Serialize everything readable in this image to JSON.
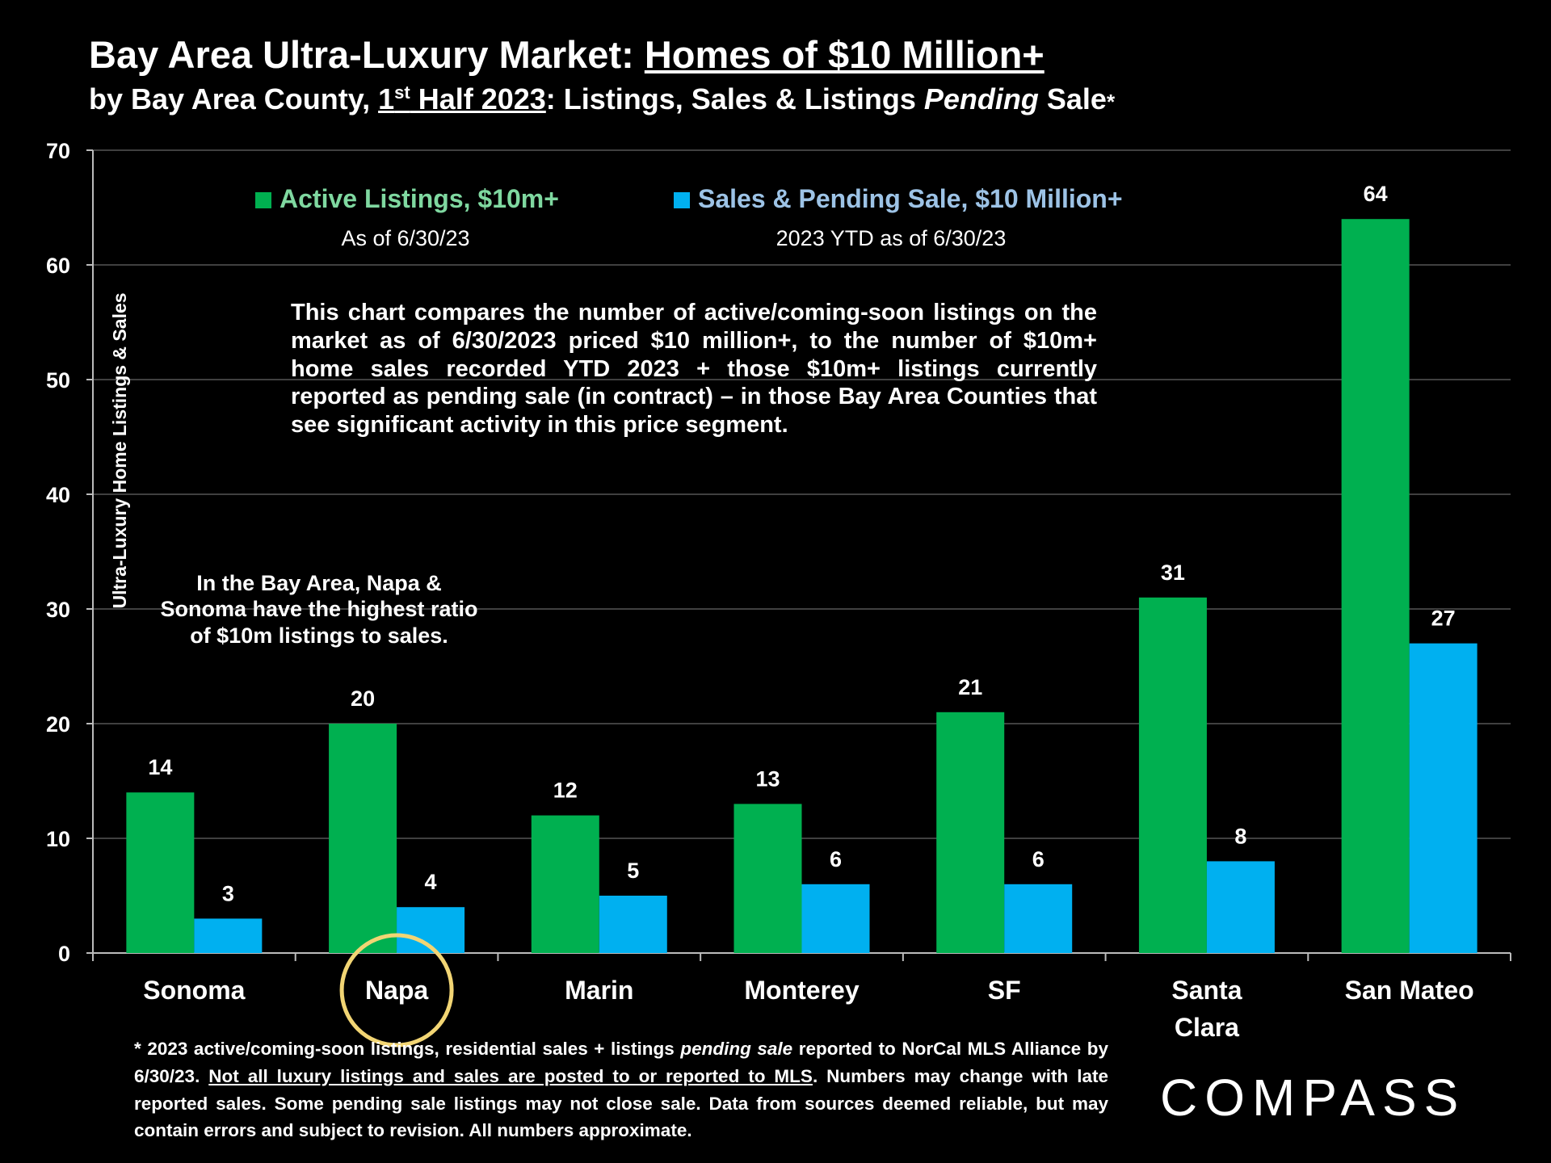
{
  "header": {
    "title_prefix": "Bay Area Ultra-Luxury Market: ",
    "title_underlined": "Homes of $10 Million+",
    "sub_prefix": "by Bay Area County, ",
    "sub_ordinal": "1",
    "sub_ordinal_sup": "st",
    "sub_period": " Half 2023",
    "sub_mid": ":  Listings, Sales & Listings ",
    "sub_italic": "Pending",
    "sub_suffix": " Sale",
    "sub_asterisk": "*"
  },
  "colors": {
    "background": "#000000",
    "active": "#00B050",
    "sales": "#00B0F0",
    "active_legend_text": "#7FD8A0",
    "sales_legend_text": "#9DC3E6",
    "grid": "#555555",
    "circle": "#F2D574"
  },
  "chart_data": {
    "type": "bar",
    "categories": [
      "Sonoma",
      "Napa",
      "Marin",
      "Monterey",
      "SF",
      "Santa Clara",
      "San Mateo"
    ],
    "series": [
      {
        "name": "Active Listings, $10m+",
        "note": "As of 6/30/23",
        "values": [
          14,
          20,
          12,
          13,
          21,
          31,
          64
        ]
      },
      {
        "name": "Sales & Pending Sale, $10 Million+",
        "note": "2023 YTD as of 6/30/23",
        "values": [
          3,
          4,
          5,
          6,
          6,
          8,
          27
        ]
      }
    ],
    "ylabel": "Ultra-Luxury Home Listings & Sales",
    "xlabel": "",
    "ylim": [
      0,
      70
    ],
    "yticks": [
      0,
      10,
      20,
      30,
      40,
      50,
      60,
      70
    ],
    "grid": true,
    "legend": "top",
    "highlighted_category": "Napa"
  },
  "annotations": {
    "main": "This chart compares the number of active/coming-soon listings on the market as of 6/30/2023 priced $10 million+, to the number of $10m+ home sales recorded YTD 2023 + those $10m+ listings currently reported as pending sale (in contract) – in those Bay Area Counties that see significant activity in this price segment.",
    "napa": "In the Bay Area, Napa & Sonoma have the highest ratio of $10m listings to sales."
  },
  "footnote": {
    "part1": "* 2023 active/coming-soon listings, residential sales + listings ",
    "part1_italic": "pending sale",
    "part2": " reported to NorCal MLS Alliance by 6/30/23. ",
    "part2_underlined": "Not all luxury listings and sales are posted to or reported to MLS",
    "part3": ". Numbers may change with late reported sales. Some pending sale listings may not close sale. Data from sources deemed reliable, but may contain errors and subject to revision. All numbers approximate."
  },
  "logo": {
    "text": "COMPASS"
  }
}
